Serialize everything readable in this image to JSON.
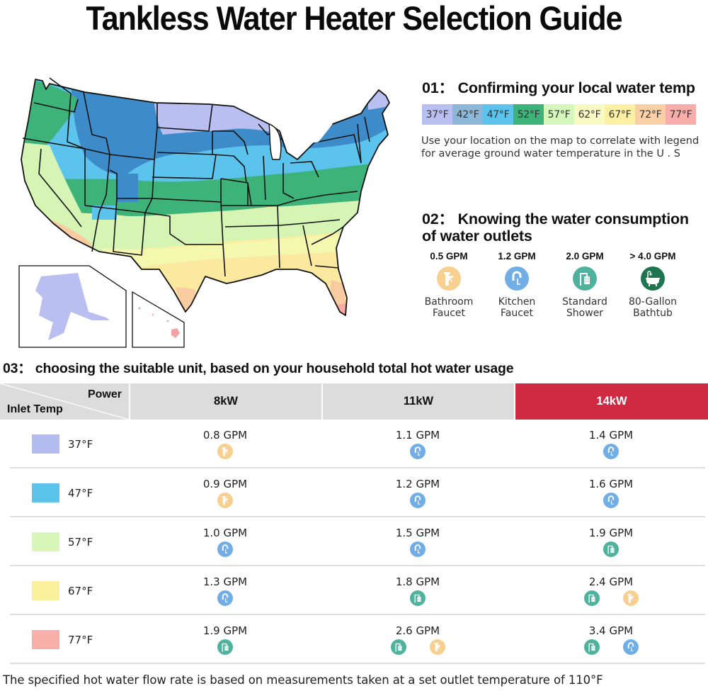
{
  "title": "Tankless Water Heater Selection Guide",
  "map": {
    "description": "Average ground water temperature map of the U.S. including Alaska and Hawaii insets",
    "zone_colors": {
      "37F": "#b9bff0",
      "42F": "#3d8bc9",
      "47F": "#5bc3ec",
      "52F": "#3db37a",
      "57F": "#d6f5b5",
      "62F": "#f4f7ae",
      "67F": "#fbee9f",
      "72F": "#f9cba0",
      "77F": "#f8aaa7"
    }
  },
  "section01": {
    "heading": "01： Confirming your local water temp",
    "legend": [
      {
        "label": "37°F",
        "color": "#b9bff0"
      },
      {
        "label": "42°F",
        "color": "#8cb7d8"
      },
      {
        "label": "47°F",
        "color": "#5bc3ec"
      },
      {
        "label": "52°F",
        "color": "#3db37a"
      },
      {
        "label": "57°F",
        "color": "#d6f7bc"
      },
      {
        "label": "62°F",
        "color": "#f7fac2"
      },
      {
        "label": "67°F",
        "color": "#fbf0a4"
      },
      {
        "label": "72°F",
        "color": "#f9cfa5"
      },
      {
        "label": "77°F",
        "color": "#f8adab"
      }
    ],
    "description": "Use your location on the map to correlate with legend for average ground water temperature in the U . S"
  },
  "section02": {
    "heading": "02： Knowing the water consumption of water outlets",
    "outlets": [
      {
        "gpm": "0.5 GPM",
        "name_line1": "Bathroom",
        "name_line2": "Faucet",
        "icon": "bathroom-faucet-icon",
        "color": "#f8cf8e"
      },
      {
        "gpm": "1.2 GPM",
        "name_line1": "Kitchen",
        "name_line2": "Faucet",
        "icon": "kitchen-faucet-icon",
        "color": "#72aee6"
      },
      {
        "gpm": "2.0 GPM",
        "name_line1": "Standard",
        "name_line2": "Shower",
        "icon": "shower-icon",
        "color": "#4fb29c"
      },
      {
        "gpm": "> 4.0 GPM",
        "name_line1": "80-Gallon",
        "name_line2": "Bathtub",
        "icon": "bathtub-icon",
        "color": "#1f7550"
      }
    ]
  },
  "section03": {
    "heading": "03： choosing the suitable unit, based on your household total hot water usage",
    "header": {
      "corner_top": "Power",
      "corner_bottom": "Inlet Temp",
      "columns": [
        {
          "label": "8kW",
          "highlight": false
        },
        {
          "label": "11kW",
          "highlight": false
        },
        {
          "label": "14kW",
          "highlight": true,
          "color": "#cf2a41"
        }
      ]
    },
    "rows": [
      {
        "temp": "37°F",
        "color": "#b3bbef",
        "cells": [
          {
            "value": "0.8 GPM",
            "icons": [
              "bathroom-faucet"
            ]
          },
          {
            "value": "1.1 GPM",
            "icons": [
              "kitchen-faucet"
            ]
          },
          {
            "value": "1.4 GPM",
            "icons": [
              "kitchen-faucet"
            ]
          }
        ]
      },
      {
        "temp": "47°F",
        "color": "#5cc4ea",
        "cells": [
          {
            "value": "0.9 GPM",
            "icons": [
              "bathroom-faucet"
            ]
          },
          {
            "value": "1.2 GPM",
            "icons": [
              "kitchen-faucet"
            ]
          },
          {
            "value": "1.6 GPM",
            "icons": [
              "kitchen-faucet"
            ]
          }
        ]
      },
      {
        "temp": "57°F",
        "color": "#d8f7b8",
        "cells": [
          {
            "value": "1.0 GPM",
            "icons": [
              "kitchen-faucet"
            ]
          },
          {
            "value": "1.5 GPM",
            "icons": [
              "kitchen-faucet"
            ]
          },
          {
            "value": "1.9 GPM",
            "icons": [
              "shower"
            ]
          }
        ]
      },
      {
        "temp": "67°F",
        "color": "#fbf09e",
        "cells": [
          {
            "value": "1.3 GPM",
            "icons": [
              "kitchen-faucet"
            ]
          },
          {
            "value": "1.8 GPM",
            "icons": [
              "shower"
            ]
          },
          {
            "value": "2.4 GPM",
            "icons": [
              "shower",
              "bathroom-faucet"
            ]
          }
        ]
      },
      {
        "temp": "77°F",
        "color": "#f9afa9",
        "cells": [
          {
            "value": "1.9 GPM",
            "icons": [
              "shower"
            ]
          },
          {
            "value": "2.6 GPM",
            "icons": [
              "shower",
              "bathroom-faucet"
            ]
          },
          {
            "value": "3.4 GPM",
            "icons": [
              "shower",
              "kitchen-faucet"
            ]
          }
        ]
      }
    ]
  },
  "footer": "The specified hot water flow rate is based on measurements taken at a set outlet temperature of 110°F"
}
